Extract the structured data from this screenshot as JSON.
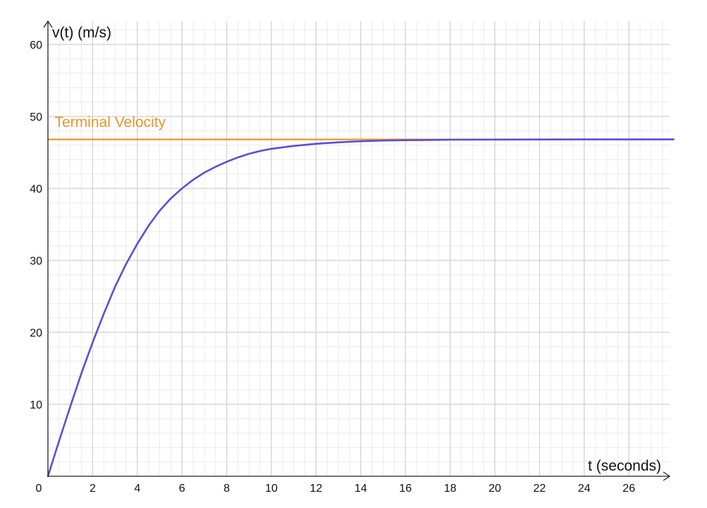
{
  "chart_data": {
    "type": "line",
    "title": "",
    "xlabel": "t (seconds)",
    "ylabel": "v(t) (m/s)",
    "xlim": [
      0,
      28
    ],
    "ylim": [
      0,
      62
    ],
    "grid": true,
    "x_ticks": [
      2,
      4,
      6,
      8,
      10,
      12,
      14,
      16,
      18,
      20,
      22,
      24,
      26
    ],
    "y_ticks": [
      10,
      20,
      30,
      40,
      50,
      60
    ],
    "origin_label": "0",
    "series": [
      {
        "color": "#5a4fd6",
        "x": [
          0,
          0.5,
          1,
          1.5,
          2,
          2.5,
          3,
          3.5,
          4,
          4.5,
          5,
          5.5,
          6,
          6.5,
          7,
          7.5,
          8,
          8.5,
          9,
          9.5,
          10,
          11,
          12,
          13,
          14,
          15,
          16,
          17,
          18,
          20,
          22,
          24,
          26,
          28
        ],
        "y": [
          0,
          4.9,
          9.7,
          14.3,
          18.6,
          22.6,
          26.3,
          29.5,
          32.3,
          34.8,
          36.9,
          38.6,
          40.0,
          41.2,
          42.2,
          43.0,
          43.7,
          44.3,
          44.8,
          45.2,
          45.5,
          45.9,
          46.2,
          46.4,
          46.55,
          46.65,
          46.7,
          46.73,
          46.76,
          46.78,
          46.79,
          46.8,
          46.8,
          46.8
        ]
      }
    ],
    "reference_lines": [
      {
        "name": "Terminal Velocity",
        "y": 46.8,
        "color": "#e8962a"
      }
    ],
    "annotations": [
      {
        "text": "Terminal Velocity",
        "x": 0.3,
        "y": 49.2,
        "color": "#e8962a"
      }
    ]
  }
}
